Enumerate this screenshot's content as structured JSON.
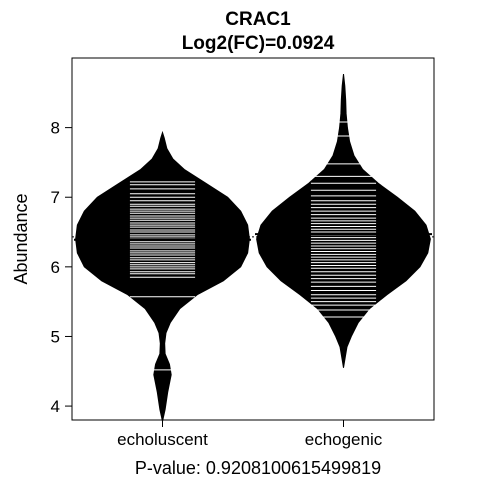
{
  "chart_data": {
    "type": "beanplot",
    "title": "CRAC1",
    "subtitle": "Log2(FC)=0.0924",
    "xlabel": "P-value: 0.9208100615499819",
    "ylabel": "Abundance",
    "ylim": [
      3.8,
      9.0
    ],
    "yticks": [
      4,
      5,
      6,
      7,
      8
    ],
    "categories": [
      "echoluscent",
      "echogenic"
    ],
    "overall_mean": 6.43,
    "groups": [
      {
        "name": "echoluscent",
        "mean": 6.39,
        "density": [
          [
            3.78,
            0.0
          ],
          [
            3.95,
            0.03
          ],
          [
            4.2,
            0.06
          ],
          [
            4.45,
            0.1
          ],
          [
            4.6,
            0.08
          ],
          [
            4.75,
            0.03
          ],
          [
            4.9,
            0.025
          ],
          [
            5.05,
            0.04
          ],
          [
            5.2,
            0.09
          ],
          [
            5.4,
            0.2
          ],
          [
            5.6,
            0.4
          ],
          [
            5.8,
            0.7
          ],
          [
            6.0,
            0.9
          ],
          [
            6.2,
            0.98
          ],
          [
            6.4,
            1.0
          ],
          [
            6.6,
            0.98
          ],
          [
            6.8,
            0.9
          ],
          [
            7.0,
            0.75
          ],
          [
            7.2,
            0.5
          ],
          [
            7.4,
            0.25
          ],
          [
            7.55,
            0.12
          ],
          [
            7.7,
            0.05
          ],
          [
            7.85,
            0.02
          ],
          [
            7.93,
            0.0
          ]
        ],
        "values": [
          4.52,
          5.57,
          5.85,
          5.9,
          5.93,
          5.97,
          6.0,
          6.03,
          6.06,
          6.1,
          6.13,
          6.17,
          6.2,
          6.23,
          6.27,
          6.3,
          6.33,
          6.36,
          6.4,
          6.43,
          6.46,
          6.5,
          6.53,
          6.57,
          6.6,
          6.63,
          6.67,
          6.7,
          6.73,
          6.77,
          6.8,
          6.83,
          6.87,
          6.9,
          6.95,
          7.0,
          7.05,
          7.12,
          7.18,
          7.22
        ]
      },
      {
        "name": "echogenic",
        "mean": 6.47,
        "density": [
          [
            4.55,
            0.0
          ],
          [
            4.7,
            0.02
          ],
          [
            4.85,
            0.04
          ],
          [
            5.0,
            0.09
          ],
          [
            5.2,
            0.17
          ],
          [
            5.4,
            0.3
          ],
          [
            5.6,
            0.5
          ],
          [
            5.8,
            0.72
          ],
          [
            6.0,
            0.88
          ],
          [
            6.2,
            0.97
          ],
          [
            6.4,
            1.0
          ],
          [
            6.6,
            0.95
          ],
          [
            6.8,
            0.82
          ],
          [
            7.0,
            0.62
          ],
          [
            7.2,
            0.4
          ],
          [
            7.4,
            0.22
          ],
          [
            7.6,
            0.12
          ],
          [
            7.8,
            0.07
          ],
          [
            8.0,
            0.045
          ],
          [
            8.2,
            0.03
          ],
          [
            8.4,
            0.025
          ],
          [
            8.6,
            0.015
          ],
          [
            8.77,
            0.0
          ]
        ],
        "values": [
          5.28,
          5.38,
          5.45,
          5.5,
          5.55,
          5.6,
          5.66,
          5.72,
          5.78,
          5.83,
          5.88,
          5.93,
          5.98,
          6.02,
          6.06,
          6.1,
          6.14,
          6.18,
          6.22,
          6.26,
          6.3,
          6.34,
          6.38,
          6.42,
          6.46,
          6.5,
          6.54,
          6.58,
          6.62,
          6.66,
          6.7,
          6.75,
          6.8,
          6.85,
          6.9,
          6.95,
          7.02,
          7.1,
          7.2,
          7.3,
          7.48,
          7.88,
          8.08
        ]
      }
    ],
    "grid": false,
    "legend": "none"
  }
}
